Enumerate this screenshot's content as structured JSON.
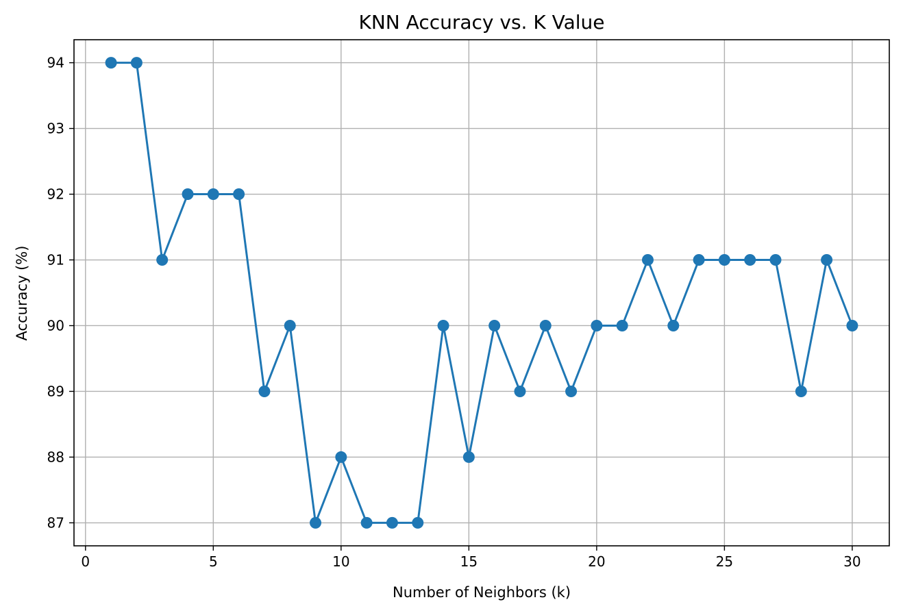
{
  "chart_data": {
    "type": "line",
    "title": "KNN Accuracy vs. K Value",
    "xlabel": "Number of Neighbors (k)",
    "ylabel": "Accuracy (%)",
    "xlim": [
      -0.45,
      31.45
    ],
    "ylim": [
      86.65,
      94.35
    ],
    "xticks": [
      0,
      5,
      10,
      15,
      20,
      25,
      30
    ],
    "yticks": [
      87,
      88,
      89,
      90,
      91,
      92,
      93,
      94
    ],
    "grid": true,
    "series": [
      {
        "color": "#1f77b4",
        "marker": "circle",
        "x": [
          1,
          2,
          3,
          4,
          5,
          6,
          7,
          8,
          9,
          10,
          11,
          12,
          13,
          14,
          15,
          16,
          17,
          18,
          19,
          20,
          21,
          22,
          23,
          24,
          25,
          26,
          27,
          28,
          29,
          30
        ],
        "y": [
          94,
          94,
          91,
          92,
          92,
          92,
          89,
          90,
          87,
          88,
          87,
          87,
          87,
          90,
          88,
          90,
          89,
          90,
          89,
          90,
          90,
          91,
          90,
          91,
          91,
          91,
          91,
          89,
          91,
          90
        ]
      }
    ]
  }
}
